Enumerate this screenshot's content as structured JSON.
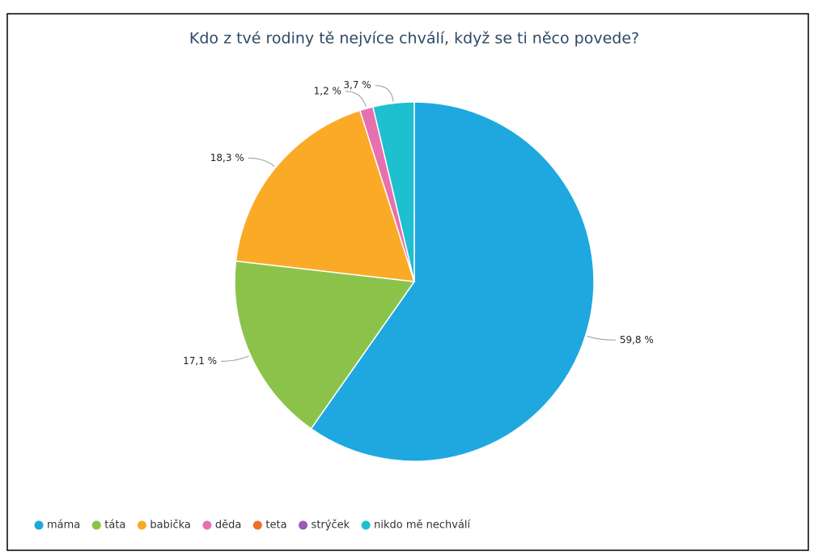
{
  "chart_data": {
    "type": "pie",
    "title": "Kdo z tvé rodiny tě nejvíce chválí, když se ti něco povede?",
    "categories": [
      "máma",
      "táta",
      "babička",
      "děda",
      "teta",
      "strýček",
      "nikdo mě nechválí"
    ],
    "values": [
      59.8,
      17.1,
      18.3,
      1.2,
      0,
      0,
      3.7
    ],
    "value_labels": [
      "59,8 %",
      "17,1 %",
      "18,3 %",
      "1,2 %",
      null,
      null,
      "3,7 %"
    ],
    "colors": [
      "#1fa8e0",
      "#8bc34a",
      "#fbaa27",
      "#e770b0",
      "#f36c2b",
      "#9b59b6",
      "#1ebfcf"
    ],
    "legend": "bottom"
  }
}
